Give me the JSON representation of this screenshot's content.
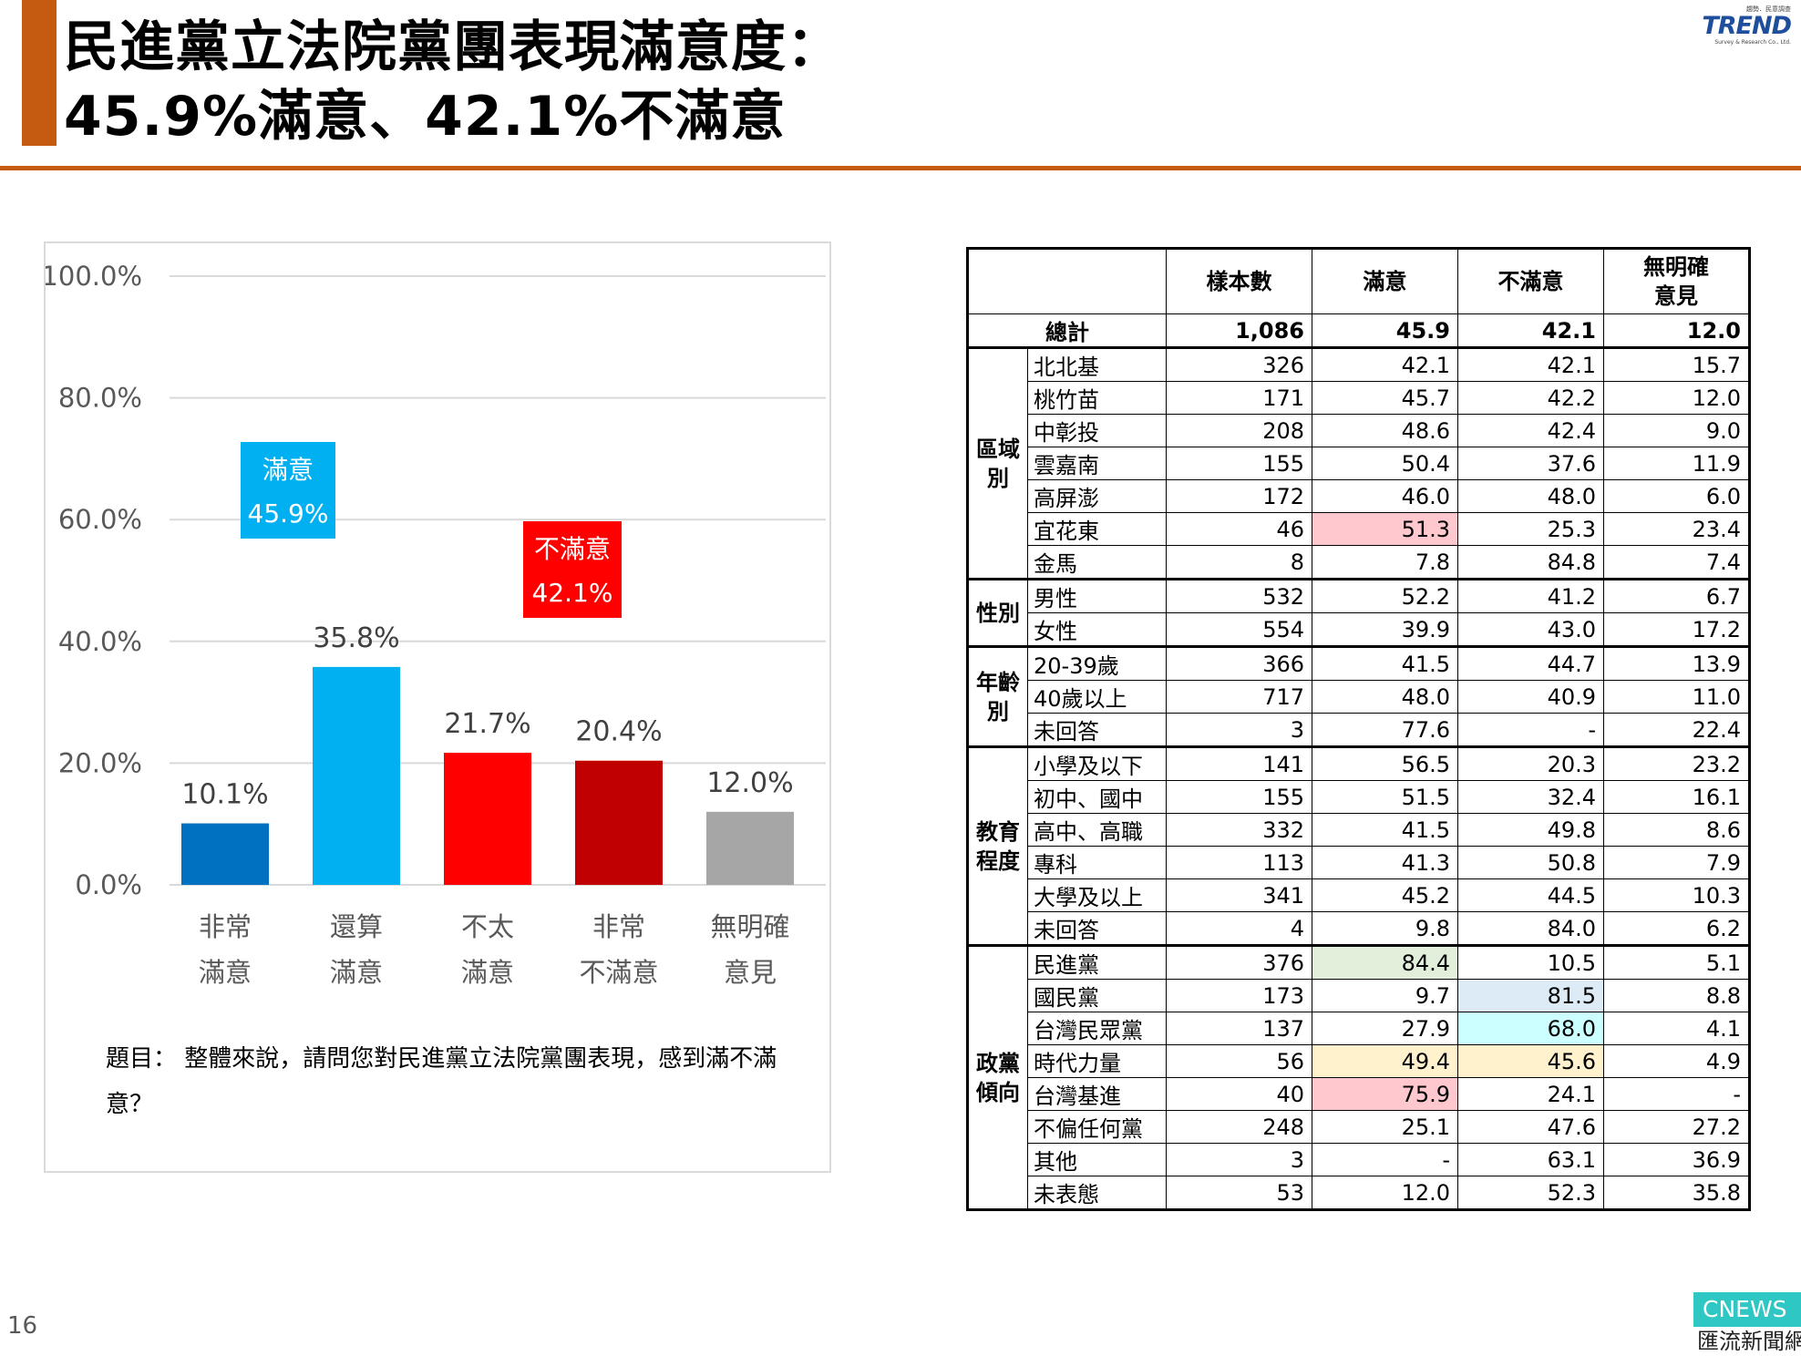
{
  "title": {
    "line1": "民進黨立法院黨團表現滿意度：",
    "line2": "45.9%滿意、42.1%不滿意"
  },
  "logo": {
    "top": "趨勢．民意調查",
    "main": "TREND",
    "sub": "Survey & Research Co., Ltd."
  },
  "page_number": "16",
  "watermark": {
    "line1": "CNEWS",
    "line2": "匯流新聞網"
  },
  "question": "題目： 整體來說，請問您對民進黨立法院黨團表現，感到滿不滿意？",
  "colors": {
    "accent": "#c55a11",
    "satisfied_box": "#00b0f0",
    "dissatisfied_box": "#ff0000",
    "hl_pink": "#ffc7ce",
    "hl_green": "#e2efda",
    "hl_blue": "#ddebf7",
    "hl_cyan": "#ccffff",
    "hl_yellow": "#fff2cc"
  },
  "chart_data": {
    "type": "bar",
    "categories": [
      [
        "非常",
        "滿意"
      ],
      [
        "還算",
        "滿意"
      ],
      [
        "不太",
        "滿意"
      ],
      [
        "非常",
        "不滿意"
      ],
      [
        "無明確",
        "意見"
      ]
    ],
    "values": [
      10.1,
      35.8,
      21.7,
      20.4,
      12.0
    ],
    "value_labels": [
      "10.1%",
      "35.8%",
      "21.7%",
      "20.4%",
      "12.0%"
    ],
    "colors": [
      "#0070c0",
      "#00b0f0",
      "#ff0000",
      "#c00000",
      "#a6a6a6"
    ],
    "ylim": [
      0,
      100
    ],
    "yticks": [
      0,
      20,
      40,
      60,
      80,
      100
    ],
    "ytick_labels": [
      "0.0%",
      "20.0%",
      "40.0%",
      "60.0%",
      "80.0%",
      "100.0%"
    ],
    "grid": true,
    "annotations": [
      {
        "line1": "滿意",
        "line2": "45.9%",
        "color": "#00b0f0"
      },
      {
        "line1": "不滿意",
        "line2": "42.1%",
        "color": "#ff0000"
      }
    ]
  },
  "table": {
    "headers": [
      "樣本數",
      "滿意",
      "不滿意",
      "無明確意見"
    ],
    "header_lines": [
      [
        "樣本數"
      ],
      [
        "滿意"
      ],
      [
        "不滿意"
      ],
      [
        "無明確",
        "意見"
      ]
    ],
    "total": {
      "label": "總計",
      "values": [
        "1,086",
        "45.9",
        "42.1",
        "12.0"
      ]
    },
    "groups": [
      {
        "name": "區域別",
        "name_lines": [
          "區域",
          "別"
        ],
        "rows": [
          {
            "label": "北北基",
            "values": [
              "326",
              "42.1",
              "42.1",
              "15.7"
            ]
          },
          {
            "label": "桃竹苗",
            "values": [
              "171",
              "45.7",
              "42.2",
              "12.0"
            ]
          },
          {
            "label": "中彰投",
            "values": [
              "208",
              "48.6",
              "42.4",
              "9.0"
            ]
          },
          {
            "label": "雲嘉南",
            "values": [
              "155",
              "50.4",
              "37.6",
              "11.9"
            ]
          },
          {
            "label": "高屏澎",
            "values": [
              "172",
              "46.0",
              "48.0",
              "6.0"
            ]
          },
          {
            "label": "宜花東",
            "values": [
              "46",
              "51.3",
              "25.3",
              "23.4"
            ],
            "hl": [
              null,
              "#ffc7ce",
              null,
              null
            ]
          },
          {
            "label": "金馬",
            "values": [
              "8",
              "7.8",
              "84.8",
              "7.4"
            ]
          }
        ]
      },
      {
        "name": "性別",
        "name_lines": [
          "性別"
        ],
        "rows": [
          {
            "label": "男性",
            "values": [
              "532",
              "52.2",
              "41.2",
              "6.7"
            ]
          },
          {
            "label": "女性",
            "values": [
              "554",
              "39.9",
              "43.0",
              "17.2"
            ]
          }
        ]
      },
      {
        "name": "年齡別",
        "name_lines": [
          "年齡",
          "別"
        ],
        "rows": [
          {
            "label": "20-39歲",
            "values": [
              "366",
              "41.5",
              "44.7",
              "13.9"
            ]
          },
          {
            "label": "40歲以上",
            "values": [
              "717",
              "48.0",
              "40.9",
              "11.0"
            ]
          },
          {
            "label": "未回答",
            "values": [
              "3",
              "77.6",
              "-",
              "22.4"
            ]
          }
        ]
      },
      {
        "name": "教育程度",
        "name_lines": [
          "教育",
          "程度"
        ],
        "rows": [
          {
            "label": "小學及以下",
            "values": [
              "141",
              "56.5",
              "20.3",
              "23.2"
            ]
          },
          {
            "label": "初中、國中",
            "values": [
              "155",
              "51.5",
              "32.4",
              "16.1"
            ]
          },
          {
            "label": "高中、高職",
            "values": [
              "332",
              "41.5",
              "49.8",
              "8.6"
            ]
          },
          {
            "label": "專科",
            "values": [
              "113",
              "41.3",
              "50.8",
              "7.9"
            ]
          },
          {
            "label": "大學及以上",
            "values": [
              "341",
              "45.2",
              "44.5",
              "10.3"
            ]
          },
          {
            "label": "未回答",
            "values": [
              "4",
              "9.8",
              "84.0",
              "6.2"
            ]
          }
        ]
      },
      {
        "name": "政黨傾向",
        "name_lines": [
          "政黨",
          "傾向"
        ],
        "rows": [
          {
            "label": "民進黨",
            "values": [
              "376",
              "84.4",
              "10.5",
              "5.1"
            ],
            "hl": [
              null,
              "#e2efda",
              null,
              null
            ]
          },
          {
            "label": "國民黨",
            "values": [
              "173",
              "9.7",
              "81.5",
              "8.8"
            ],
            "hl": [
              null,
              null,
              "#ddebf7",
              null
            ]
          },
          {
            "label": "台灣民眾黨",
            "values": [
              "137",
              "27.9",
              "68.0",
              "4.1"
            ],
            "hl": [
              null,
              null,
              "#ccffff",
              null
            ]
          },
          {
            "label": "時代力量",
            "values": [
              "56",
              "49.4",
              "45.6",
              "4.9"
            ],
            "hl": [
              null,
              "#fff2cc",
              "#fff2cc",
              null
            ]
          },
          {
            "label": "台灣基進",
            "values": [
              "40",
              "75.9",
              "24.1",
              "-"
            ],
            "hl": [
              null,
              "#ffc7ce",
              null,
              null
            ]
          },
          {
            "label": "不偏任何黨",
            "values": [
              "248",
              "25.1",
              "47.6",
              "27.2"
            ]
          },
          {
            "label": "其他",
            "values": [
              "3",
              "-",
              "63.1",
              "36.9"
            ]
          },
          {
            "label": "未表態",
            "values": [
              "53",
              "12.0",
              "52.3",
              "35.8"
            ]
          }
        ]
      }
    ]
  }
}
